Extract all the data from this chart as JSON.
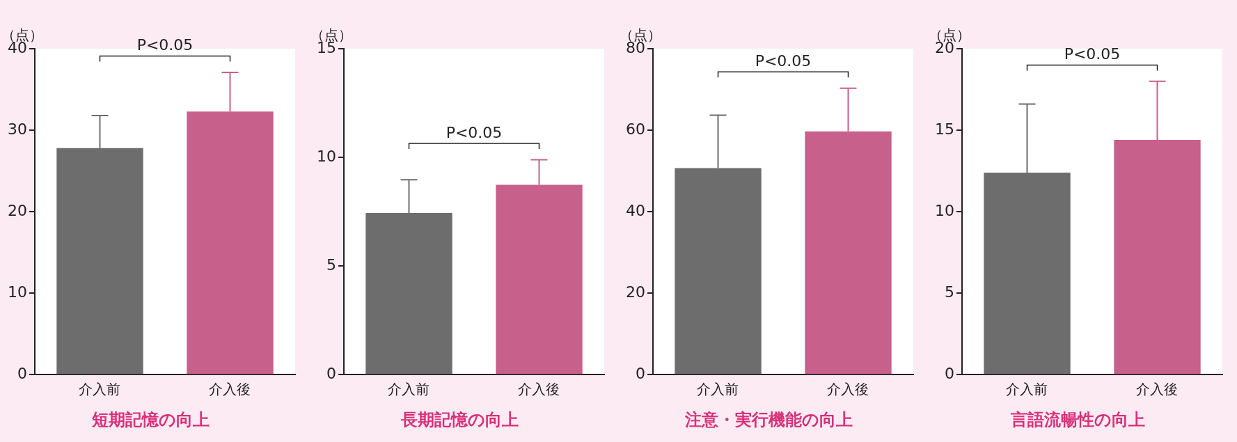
{
  "chart_data": [
    {
      "type": "bar",
      "title": "短期記憶の向上",
      "ylabel": "（点）",
      "categories": [
        "介入前",
        "介入後"
      ],
      "values": [
        27.8,
        32.3
      ],
      "colors": [
        "#6d6d6d",
        "#c8608c"
      ],
      "errors": [
        [
          27.8,
          31.8
        ],
        [
          32.3,
          37.1
        ]
      ],
      "ylim": [
        0,
        40
      ],
      "yticks": [
        0,
        10,
        20,
        30,
        40
      ],
      "annotations": [
        "P<0.05"
      ]
    },
    {
      "type": "bar",
      "title": "長期記憶の向上",
      "ylabel": "（点）",
      "categories": [
        "介入前",
        "介入後"
      ],
      "values": [
        7.44,
        8.74
      ],
      "colors": [
        "#6d6d6d",
        "#c8608c"
      ],
      "errors": [
        [
          7.44,
          8.97
        ],
        [
          8.74,
          9.89
        ]
      ],
      "ylim": [
        0,
        15
      ],
      "yticks": [
        0,
        5,
        10,
        15
      ],
      "annotations": [
        "P<0.05"
      ]
    },
    {
      "type": "bar",
      "title": "注意・実行機能の向上",
      "ylabel": "（点）",
      "categories": [
        "介入前",
        "介入後"
      ],
      "values": [
        50.7,
        59.7
      ],
      "colors": [
        "#6d6d6d",
        "#c8608c"
      ],
      "errors": [
        [
          50.7,
          63.7
        ],
        [
          59.7,
          70.3
        ]
      ],
      "ylim": [
        0,
        80
      ],
      "yticks": [
        0,
        20,
        40,
        60,
        80
      ],
      "annotations": [
        "P<0.05"
      ]
    },
    {
      "type": "bar",
      "title": "言語流暢性の向上",
      "ylabel": "（点）",
      "categories": [
        "介入前",
        "介入後"
      ],
      "values": [
        12.4,
        14.4
      ],
      "colors": [
        "#6d6d6d",
        "#c8608c"
      ],
      "errors": [
        [
          12.4,
          16.6
        ],
        [
          14.4,
          18.0
        ]
      ],
      "ylim": [
        0,
        20
      ],
      "yticks": [
        0,
        5,
        10,
        15,
        20
      ],
      "annotations": [
        "P<0.05"
      ]
    }
  ]
}
